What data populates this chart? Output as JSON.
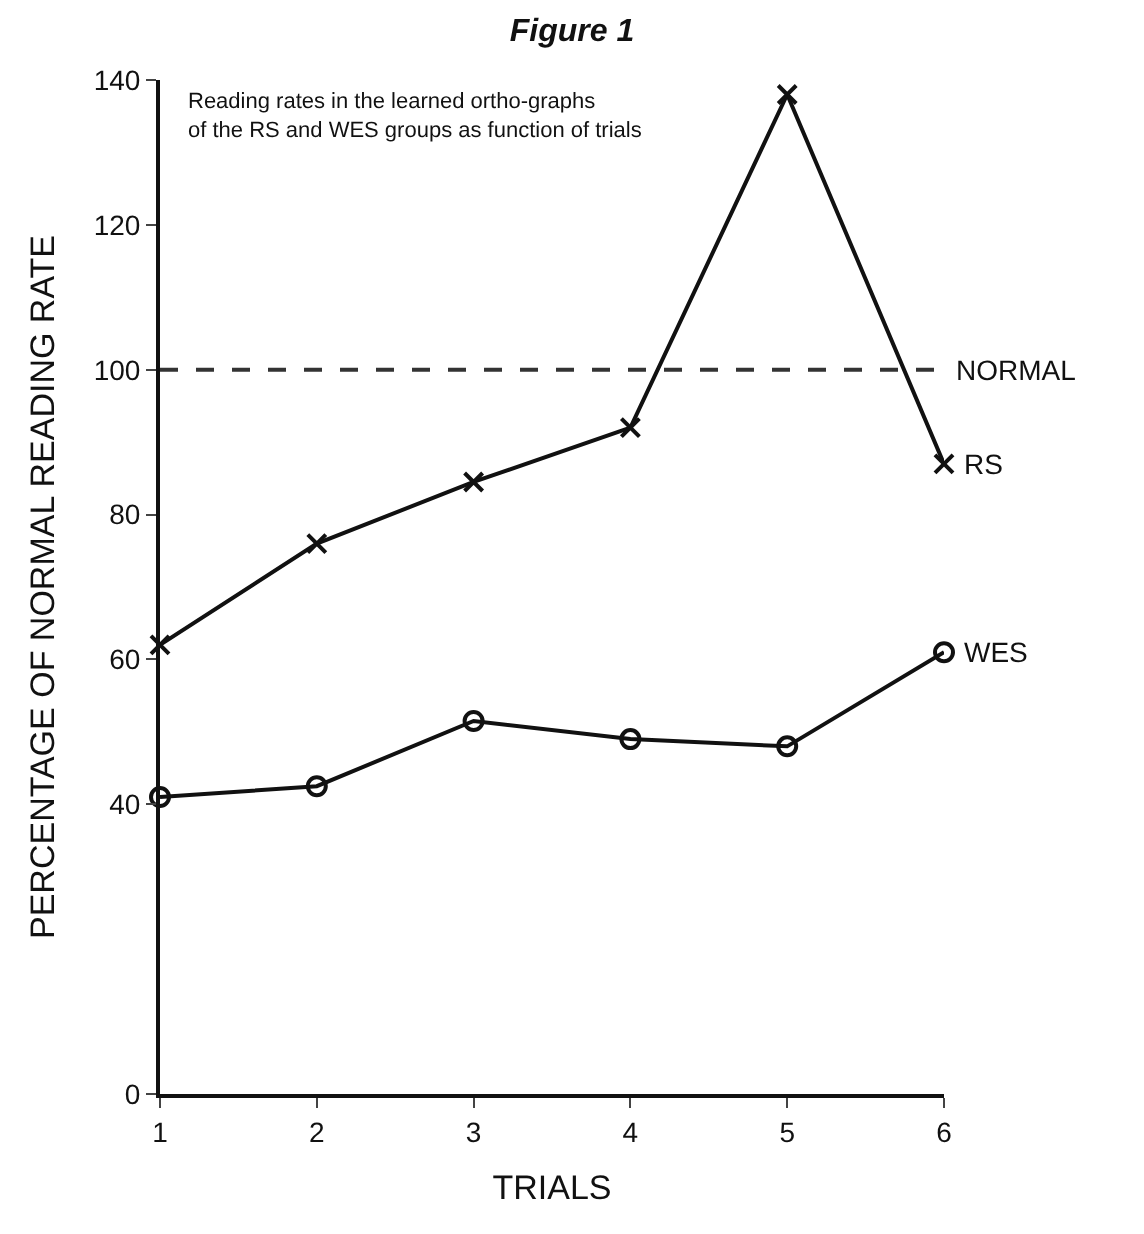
{
  "chart_data": {
    "type": "line",
    "title": "Figure 1",
    "subtitle": "Reading rates in the learned ortho-graphs of the RS and WES groups as function of trials",
    "xlabel": "TRIALS",
    "ylabel": "PERCENTAGE OF NORMAL READING RATE",
    "x": [
      1,
      2,
      3,
      4,
      5,
      6
    ],
    "series": [
      {
        "name": "RS",
        "color": "#111111",
        "marker": "cross",
        "values": [
          62,
          76,
          84.5,
          92,
          138,
          87
        ]
      },
      {
        "name": "WES",
        "color": "#111111",
        "marker": "circle",
        "values": [
          41,
          42.5,
          51.5,
          49,
          48,
          61
        ]
      }
    ],
    "xlim": [
      1,
      6
    ],
    "xticks": [
      1,
      2,
      3,
      4,
      5,
      6
    ],
    "ylim": [
      0,
      140
    ],
    "yticks": [
      0,
      40,
      60,
      80,
      100,
      120,
      140
    ],
    "ref_lines": [
      {
        "axis": "y",
        "value": 100,
        "label": "NORMAL",
        "line_style": "dashed",
        "color": "#333333"
      }
    ],
    "legend": false,
    "line_style": "solid"
  }
}
